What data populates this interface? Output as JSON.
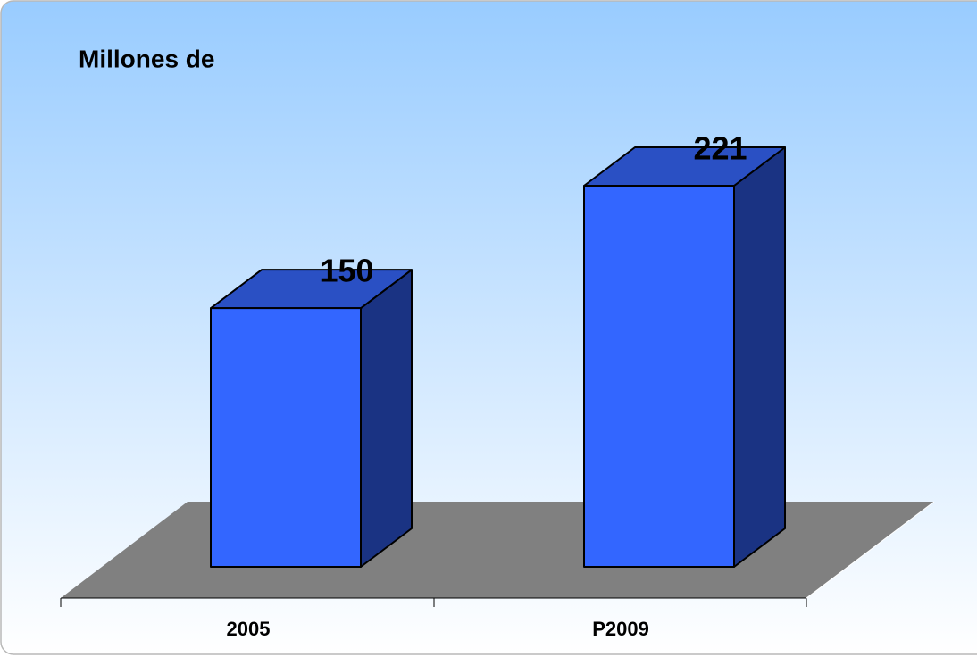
{
  "chart_data": {
    "type": "bar3d",
    "title": "Millones de",
    "categories": [
      "2005",
      "P2009"
    ],
    "values": [
      150,
      221
    ],
    "color": "#3366ff"
  }
}
